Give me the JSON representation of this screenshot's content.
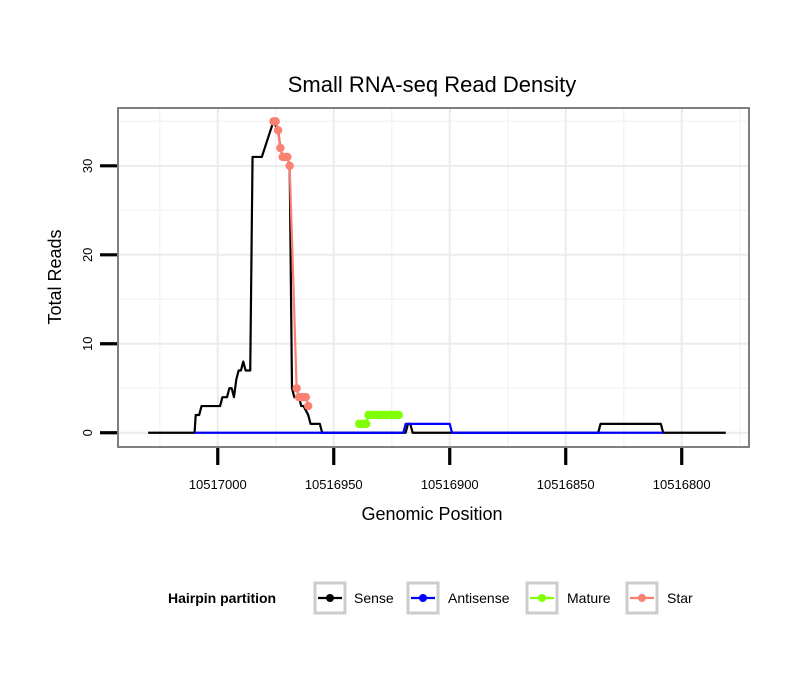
{
  "chart_data": {
    "type": "line",
    "title": "Small RNA-seq Read Density",
    "xlabel": "Genomic Position",
    "ylabel": "Total Reads",
    "xlim": [
      10517043,
      10516771
    ],
    "ylim": [
      -1.6,
      36.5
    ],
    "x_reversed": true,
    "xticks": [
      10517000,
      10516950,
      10516900,
      10516850,
      10516800
    ],
    "xtick_labels": [
      "10517000",
      "10516950",
      "10516900",
      "10516850",
      "10516800"
    ],
    "yticks": [
      0,
      10,
      20,
      30
    ],
    "ytick_labels": [
      "0",
      "10",
      "20",
      "30"
    ],
    "grid": true,
    "legend": {
      "title": "Hairpin partition",
      "placement": "bottom",
      "entries": [
        {
          "name": "Sense",
          "color": "#000000"
        },
        {
          "name": "Antisense",
          "color": "#0000ff"
        },
        {
          "name": "Mature",
          "color": "#7fff00"
        },
        {
          "name": "Star",
          "color": "#fa8072"
        }
      ]
    },
    "series": [
      {
        "name": "Sense",
        "color": "#000000",
        "points": [
          [
            10517030,
            0
          ],
          [
            10517010,
            0
          ],
          [
            10517009.5,
            2
          ],
          [
            10517008,
            2
          ],
          [
            10517007,
            3
          ],
          [
            10517004,
            3
          ],
          [
            10516999,
            3
          ],
          [
            10516998,
            4
          ],
          [
            10516996,
            4
          ],
          [
            10516995,
            5
          ],
          [
            10516994,
            5
          ],
          [
            10516993,
            4
          ],
          [
            10516992,
            6
          ],
          [
            10516991,
            7
          ],
          [
            10516990,
            7
          ],
          [
            10516989,
            8
          ],
          [
            10516988,
            7
          ],
          [
            10516986,
            7
          ],
          [
            10516985,
            31
          ],
          [
            10516981,
            31
          ],
          [
            10516976,
            35
          ],
          [
            10516974,
            34
          ],
          [
            10516973,
            32
          ],
          [
            10516972,
            31
          ],
          [
            10516970,
            31
          ],
          [
            10516969,
            30
          ],
          [
            10516968,
            5
          ],
          [
            10516967,
            4
          ],
          [
            10516965,
            4
          ],
          [
            10516964,
            3
          ],
          [
            10516963,
            3
          ],
          [
            10516961,
            2
          ],
          [
            10516960,
            1
          ],
          [
            10516956,
            1
          ],
          [
            10516955,
            0
          ],
          [
            10516919,
            0
          ],
          [
            10516918,
            1
          ],
          [
            10516917,
            1
          ],
          [
            10516916,
            0
          ],
          [
            10516836,
            0
          ],
          [
            10516835,
            1
          ],
          [
            10516809,
            1
          ],
          [
            10516808,
            0
          ],
          [
            10516781,
            0
          ]
        ]
      },
      {
        "name": "Antisense",
        "color": "#0000ff",
        "points": [
          [
            10517010,
            0
          ],
          [
            10516920,
            0
          ],
          [
            10516919,
            1
          ],
          [
            10516900,
            1
          ],
          [
            10516899,
            0
          ],
          [
            10516808,
            0
          ]
        ]
      },
      {
        "name": "Mature",
        "color": "#7fff00",
        "points": [
          [
            10516939,
            1
          ],
          [
            10516938,
            1
          ],
          [
            10516937,
            1
          ],
          [
            10516936,
            1
          ],
          [
            10516935,
            2
          ],
          [
            10516934,
            2
          ],
          [
            10516933,
            2
          ],
          [
            10516932,
            2
          ],
          [
            10516931,
            2
          ],
          [
            10516930,
            2
          ],
          [
            10516929,
            2
          ],
          [
            10516928,
            2
          ],
          [
            10516927,
            2
          ],
          [
            10516926,
            2
          ],
          [
            10516925,
            2
          ],
          [
            10516924,
            2
          ],
          [
            10516923,
            2
          ],
          [
            10516922,
            2
          ]
        ]
      },
      {
        "name": "Star",
        "color": "#fa8072",
        "points": [
          [
            10516976,
            35
          ],
          [
            10516975,
            35
          ],
          [
            10516974,
            34
          ],
          [
            10516973,
            32
          ],
          [
            10516972,
            31
          ],
          [
            10516971,
            31
          ],
          [
            10516970,
            31
          ],
          [
            10516969,
            30
          ],
          [
            10516966,
            5
          ],
          [
            10516965,
            4
          ],
          [
            10516964,
            4
          ],
          [
            10516963,
            4
          ],
          [
            10516962,
            4
          ],
          [
            10516961,
            3
          ]
        ]
      }
    ]
  }
}
